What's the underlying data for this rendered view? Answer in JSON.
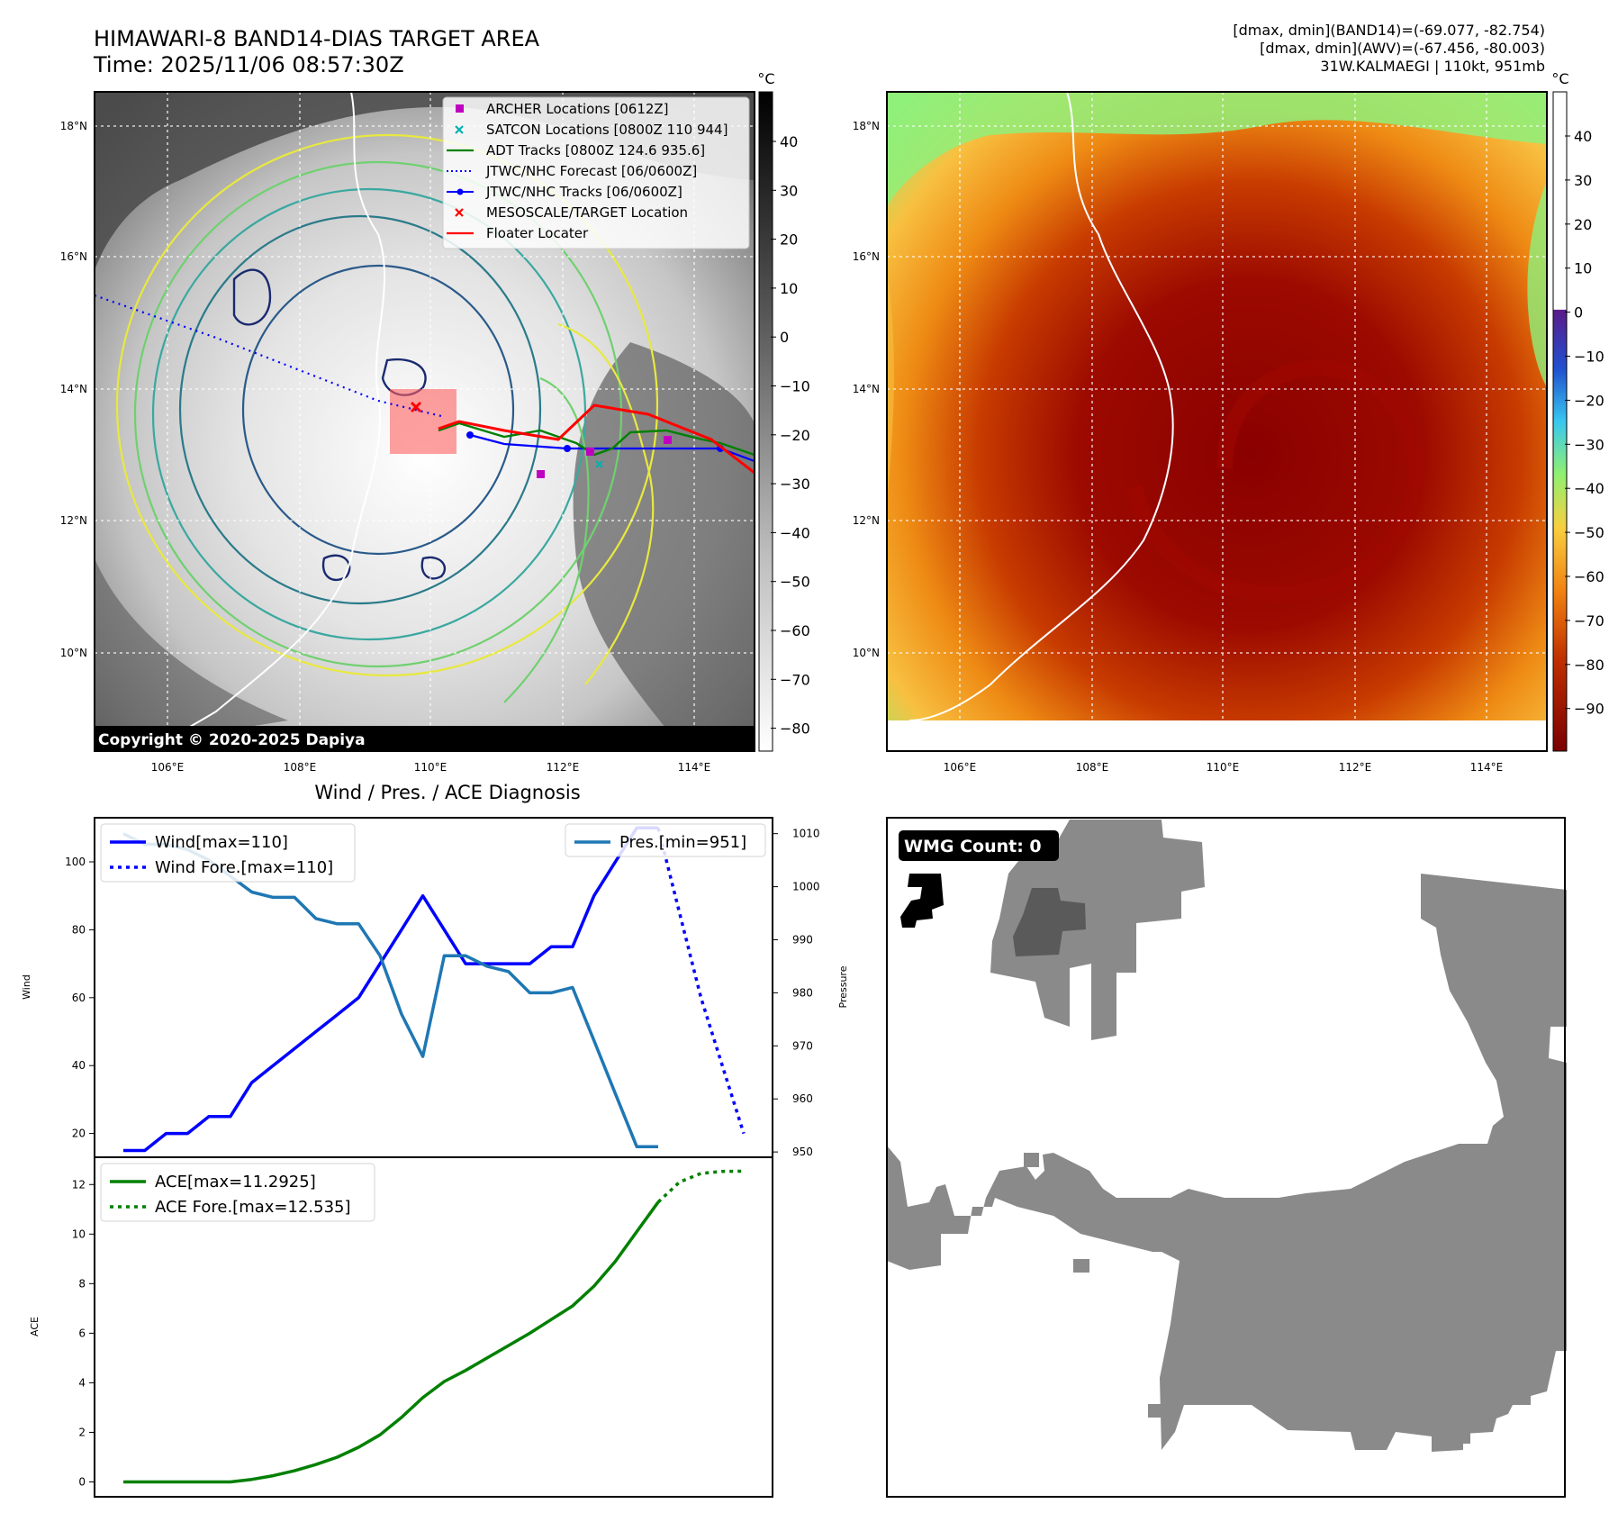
{
  "header": {
    "title": "HIMAWARI-8 BAND14-DIAS TARGET AREA",
    "time": "Time: 2025/11/06 08:57:30Z",
    "info": [
      "[dmax, dmin](BAND14)=(-69.077, -82.754)",
      "[dmax, dmin](AWV)=(-67.456, -80.003)",
      "31W.KALMAEGI | 110kt, 951mb"
    ]
  },
  "maps": {
    "lon_ticks": [
      "106°E",
      "108°E",
      "110°E",
      "112°E",
      "114°E"
    ],
    "lat_ticks": [
      "18°N",
      "16°N",
      "14°N",
      "12°N",
      "10°N"
    ],
    "copyright": "Copyright © 2020-2025 Dapiya",
    "unit": "°C",
    "colorbar1_ticks": [
      "40",
      "30",
      "20",
      "10",
      "0",
      "−10",
      "−20",
      "−30",
      "−40",
      "−50",
      "−60",
      "−70",
      "−80"
    ],
    "colorbar2_ticks": [
      "40",
      "30",
      "20",
      "10",
      "0",
      "−10",
      "−20",
      "−30",
      "−40",
      "−50",
      "−60",
      "−70",
      "−80",
      "−90"
    ],
    "legend": [
      {
        "label": "ARCHER Locations [0612Z]",
        "color": "#c000c0",
        "kind": "square"
      },
      {
        "label": "SATCON Locations [0800Z 110 944]",
        "color": "#00b0b0",
        "kind": "x"
      },
      {
        "label": "ADT Tracks [0800Z 124.6 935.6]",
        "color": "#008000",
        "kind": "line"
      },
      {
        "label": "JTWC/NHC Forecast [06/0600Z]",
        "color": "#0000ff",
        "kind": "dotted"
      },
      {
        "label": "JTWC/NHC Tracks [06/0600Z]",
        "color": "#0000ff",
        "kind": "line-dot"
      },
      {
        "label": "MESOSCALE/TARGET Location",
        "color": "#ff0000",
        "kind": "x"
      },
      {
        "label": "Floater Locater",
        "color": "#ff0000",
        "kind": "line"
      }
    ]
  },
  "wmg": {
    "label": "WMG Count: 0"
  },
  "chart_data": [
    {
      "type": "line",
      "title": "Wind / Pres. / ACE Diagnosis",
      "ylabel": "Wind",
      "y2label": "Pressure",
      "ylim": [
        13,
        113
      ],
      "y2lim": [
        949,
        1013
      ],
      "yticks": [
        20,
        40,
        60,
        80,
        100
      ],
      "y2ticks": [
        950,
        960,
        970,
        980,
        990,
        1000,
        1010
      ],
      "series": [
        {
          "name": "Wind[max=110]",
          "color": "#0000ff",
          "style": "solid",
          "axis": "left",
          "values": [
            15,
            15,
            20,
            20,
            25,
            25,
            35,
            40,
            45,
            50,
            55,
            60,
            70,
            80,
            90,
            80,
            70,
            70,
            70,
            70,
            75,
            75,
            90,
            100,
            110,
            110
          ]
        },
        {
          "name": "Wind Fore.[max=110]",
          "color": "#0000ff",
          "style": "dotted",
          "axis": "left",
          "start": 25,
          "values": [
            110,
            85,
            60,
            40,
            20
          ]
        },
        {
          "name": "Pres.[min=951]",
          "color": "#1f77b4",
          "style": "solid",
          "axis": "right",
          "values": [
            1010,
            1008,
            1008,
            1007,
            1005,
            1002,
            999,
            998,
            998,
            994,
            993,
            993,
            987,
            976,
            968,
            987,
            987,
            985,
            984,
            980,
            980,
            981,
            971,
            961,
            951,
            951
          ]
        }
      ]
    },
    {
      "type": "line",
      "ylabel": "ACE",
      "ylim": [
        -0.6,
        13.1
      ],
      "yticks": [
        0,
        2,
        4,
        6,
        8,
        10,
        12
      ],
      "series": [
        {
          "name": "ACE[max=11.2925]",
          "color": "#008000",
          "style": "solid",
          "values": [
            0,
            0,
            0,
            0,
            0,
            0,
            0.1,
            0.25,
            0.45,
            0.7,
            1.0,
            1.4,
            1.9,
            2.6,
            3.4,
            4.05,
            4.5,
            5.0,
            5.5,
            6.0,
            6.55,
            7.1,
            7.9,
            8.9,
            10.1,
            11.29
          ]
        },
        {
          "name": "ACE Fore.[max=12.535]",
          "color": "#008000",
          "style": "dotted",
          "start": 25,
          "values": [
            11.29,
            12.1,
            12.45,
            12.53,
            12.535
          ]
        }
      ]
    }
  ]
}
